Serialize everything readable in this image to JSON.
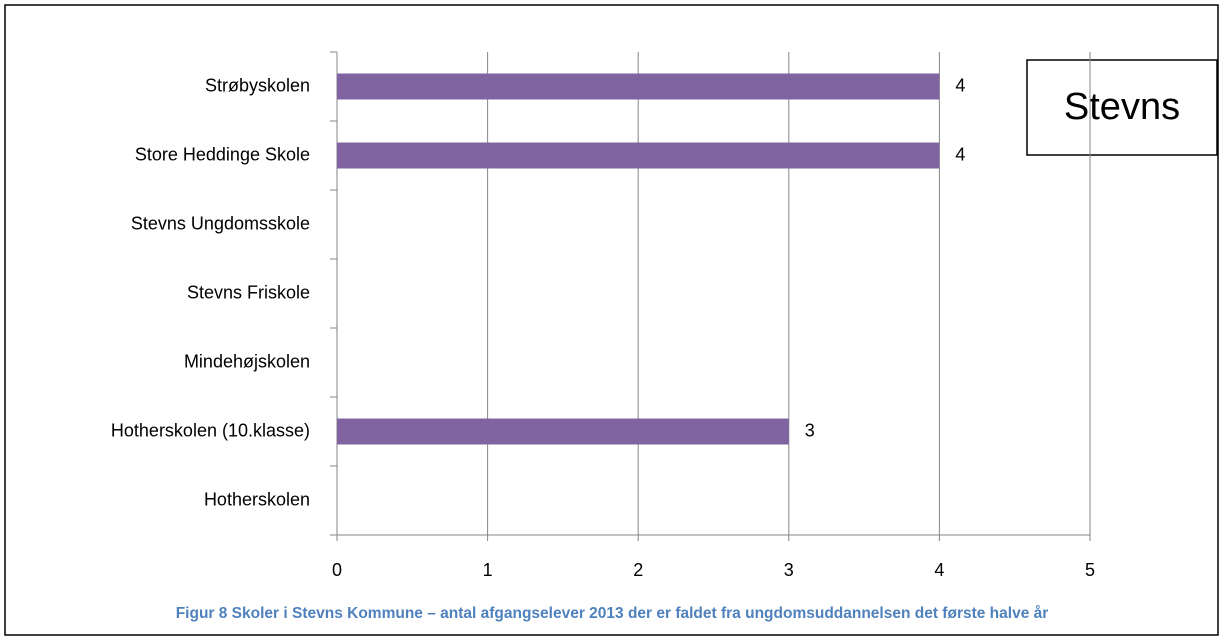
{
  "chart_data": {
    "type": "barh",
    "categories": [
      "Strøbyskolen",
      "Store Heddinge Skole",
      "Stevns Ungdomsskole",
      "Stevns Friskole",
      "Mindehøjskolen",
      "Hotherskolen (10.klasse)",
      "Hotherskolen"
    ],
    "values": [
      4,
      4,
      null,
      null,
      null,
      3,
      null
    ],
    "color": "#8064a2",
    "xlim": [
      0,
      5
    ],
    "xticks": [
      0,
      1,
      2,
      3,
      4,
      5
    ],
    "grid": true,
    "annotation": "Stevns",
    "caption": "Figur 8 Skoler i Stevns Kommune – antal afgangselever 2013 der er faldet fra ungdomsuddannelsen det første halve år"
  }
}
